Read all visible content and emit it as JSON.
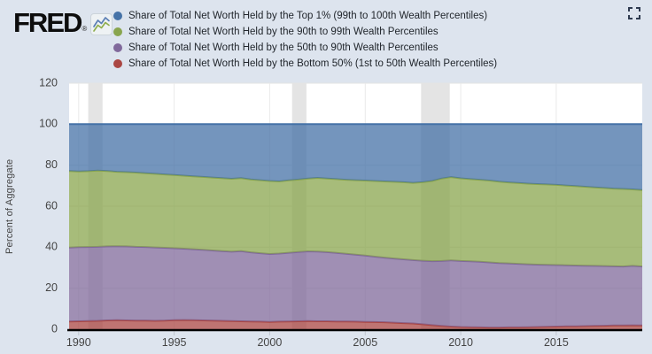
{
  "header": {
    "logo_text": "FRED",
    "logo_reg": "®"
  },
  "colors": {
    "page_background": "#dde4ee",
    "plot_background": "#ffffff",
    "recession_band": "#e4e4e4",
    "gridline": "#e3e3e3",
    "axis_line": "#000000",
    "tick_text": "#444444"
  },
  "chart_data": {
    "type": "area",
    "stacked": true,
    "title": "",
    "xlabel": "",
    "ylabel": "Percent of Aggregate",
    "ylim": [
      0,
      120
    ],
    "yticks": [
      0,
      20,
      40,
      60,
      80,
      100,
      120
    ],
    "xticks": [
      1990,
      1995,
      2000,
      2005,
      2010,
      2015
    ],
    "grid": true,
    "legend_position": "top",
    "x_range": [
      1989.5,
      2019.5
    ],
    "x": [
      1989.5,
      1990,
      1990.5,
      1991,
      1991.5,
      1992,
      1992.5,
      1993,
      1993.5,
      1994,
      1994.5,
      1995,
      1995.5,
      1996,
      1996.5,
      1997,
      1997.5,
      1998,
      1998.5,
      1999,
      1999.5,
      2000,
      2000.5,
      2001,
      2001.5,
      2002,
      2002.5,
      2003,
      2003.5,
      2004,
      2004.5,
      2005,
      2005.5,
      2006,
      2006.5,
      2007,
      2007.5,
      2008,
      2008.5,
      2009,
      2009.5,
      2010,
      2010.5,
      2011,
      2011.5,
      2012,
      2012.5,
      2013,
      2013.5,
      2014,
      2014.5,
      2015,
      2015.5,
      2016,
      2016.5,
      2017,
      2017.5,
      2018,
      2018.5,
      2019,
      2019.5
    ],
    "series": [
      {
        "id": "bottom-50-percent",
        "name": "Share of Total Net Worth Held by the Bottom 50% (1st to 50th Wealth Percentiles)",
        "color": "#aa4643",
        "values": [
          3.8,
          3.9,
          4.0,
          4.1,
          4.3,
          4.4,
          4.3,
          4.2,
          4.2,
          4.1,
          4.2,
          4.4,
          4.5,
          4.4,
          4.3,
          4.2,
          4.1,
          4.0,
          3.9,
          3.8,
          3.7,
          3.6,
          3.7,
          3.8,
          3.9,
          4.0,
          3.9,
          3.9,
          3.8,
          3.8,
          3.7,
          3.6,
          3.5,
          3.4,
          3.2,
          3.0,
          2.8,
          2.4,
          2.0,
          1.6,
          1.3,
          1.1,
          1.0,
          0.9,
          0.8,
          0.8,
          0.9,
          0.9,
          1.0,
          1.1,
          1.2,
          1.3,
          1.4,
          1.4,
          1.5,
          1.6,
          1.7,
          1.8,
          1.8,
          1.9,
          1.8
        ]
      },
      {
        "id": "50th-to-90th-percentiles",
        "name": "Share of Total Net Worth Held by the 50th to 90th Wealth Percentiles",
        "color": "#80699b",
        "values": [
          36.0,
          36.1,
          36.1,
          36.1,
          36.1,
          36.1,
          36.1,
          36.0,
          35.9,
          35.8,
          35.5,
          35.1,
          34.8,
          34.6,
          34.4,
          34.2,
          34.0,
          33.8,
          34.2,
          33.7,
          33.4,
          33.1,
          33.2,
          33.5,
          33.8,
          34.0,
          34.0,
          33.7,
          33.4,
          33.0,
          32.7,
          32.3,
          31.9,
          31.5,
          31.3,
          31.1,
          30.9,
          31.0,
          31.2,
          31.7,
          32.3,
          32.2,
          32.1,
          32.0,
          31.8,
          31.5,
          31.2,
          31.0,
          30.7,
          30.4,
          30.2,
          30.0,
          29.8,
          29.7,
          29.5,
          29.3,
          29.1,
          28.9,
          28.8,
          29.0,
          28.8
        ]
      },
      {
        "id": "90th-to-99th-percentiles",
        "name": "Share of Total Net Worth Held by the 90th to 99th Wealth Percentiles",
        "color": "#89a54e",
        "values": [
          37.4,
          36.9,
          37.0,
          37.2,
          36.8,
          36.3,
          36.2,
          36.2,
          36.0,
          35.9,
          35.8,
          35.7,
          35.6,
          35.6,
          35.6,
          35.6,
          35.6,
          35.6,
          35.6,
          35.6,
          35.6,
          35.6,
          35.2,
          35.3,
          35.3,
          35.5,
          35.9,
          35.9,
          36.0,
          36.1,
          36.3,
          36.6,
          36.9,
          37.2,
          37.4,
          37.6,
          37.7,
          38.3,
          39.1,
          40.2,
          40.6,
          40.3,
          40.1,
          40.0,
          39.9,
          39.7,
          39.5,
          39.4,
          39.3,
          39.3,
          39.2,
          39.1,
          38.9,
          38.7,
          38.5,
          38.3,
          38.1,
          37.9,
          37.8,
          37.3,
          37.3
        ]
      },
      {
        "id": "top-1-percent",
        "name": "Share of Total Net Worth Held by the Top 1% (99th to 100th Wealth Percentiles)",
        "color": "#4572a7",
        "values": [
          22.8,
          23.1,
          22.9,
          22.6,
          22.8,
          23.2,
          23.4,
          23.6,
          23.9,
          24.2,
          24.5,
          24.8,
          25.1,
          25.4,
          25.7,
          26.0,
          26.3,
          26.6,
          26.3,
          26.9,
          27.3,
          27.7,
          27.9,
          27.4,
          27.0,
          26.5,
          26.2,
          26.5,
          26.8,
          27.1,
          27.3,
          27.5,
          27.7,
          27.9,
          28.1,
          28.3,
          28.6,
          28.3,
          27.7,
          26.5,
          25.8,
          26.4,
          26.8,
          27.1,
          27.5,
          28.0,
          28.4,
          28.7,
          29.0,
          29.2,
          29.4,
          29.6,
          29.9,
          30.2,
          30.5,
          30.8,
          31.1,
          31.4,
          31.6,
          31.8,
          32.1
        ]
      }
    ],
    "recessions": [
      [
        1990.5,
        1991.25
      ],
      [
        2001.17,
        2001.92
      ],
      [
        2007.92,
        2009.42
      ]
    ]
  }
}
